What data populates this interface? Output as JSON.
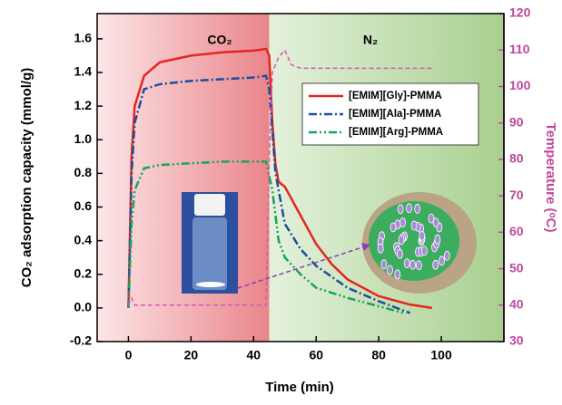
{
  "chart_data": {
    "type": "line",
    "xlabel": "Time (min)",
    "ylabel": "CO₂ adsorption capacity (mmol/g)",
    "y2label": "Temperature (ᵒC)",
    "xlim": [
      -10,
      120
    ],
    "xticks": [
      0,
      20,
      40,
      60,
      80,
      100
    ],
    "ylim": [
      -0.2,
      1.75
    ],
    "yticks": [
      -0.2,
      {
        "value": 0,
        "label": "0.0"
      },
      0.2,
      0.4,
      0.6,
      0.8,
      {
        "value": 1,
        "label": "1.0"
      },
      1.2,
      1.4,
      1.6
    ],
    "y2lim": [
      30,
      120
    ],
    "y2ticks": [
      30,
      40,
      50,
      60,
      70,
      80,
      90,
      100,
      110,
      120
    ],
    "y2color": "#c0469c",
    "regions": [
      {
        "label": "CO₂",
        "xlim": [
          -10,
          45
        ],
        "colors": [
          "#fde6e7",
          "#e9858b"
        ]
      },
      {
        "label": "N₂",
        "xlim": [
          45,
          120
        ],
        "colors": [
          "#e4f1dc",
          "#a8d08f"
        ]
      }
    ],
    "series": [
      {
        "name": "[EMIM][Gly]-PMMA",
        "color": "#e52521",
        "style": "solid",
        "x": [
          0,
          1,
          2,
          5,
          10,
          20,
          30,
          40,
          44,
          45,
          46,
          47,
          48,
          50,
          55,
          60,
          65,
          70,
          80,
          90,
          97
        ],
        "values": [
          0,
          0.9,
          1.2,
          1.38,
          1.46,
          1.5,
          1.52,
          1.53,
          1.54,
          1.5,
          1.1,
          0.85,
          0.75,
          0.72,
          0.55,
          0.38,
          0.26,
          0.17,
          0.07,
          0.02,
          0
        ]
      },
      {
        "name": "[EMIM][Ala]-PMMA",
        "color": "#1f4e9c",
        "style": "dashdot",
        "x": [
          0,
          1,
          2,
          5,
          10,
          20,
          30,
          40,
          44,
          45,
          47,
          50,
          55,
          60,
          70,
          80,
          90
        ],
        "values": [
          0,
          0.8,
          1.1,
          1.3,
          1.33,
          1.35,
          1.36,
          1.37,
          1.38,
          1.3,
          0.8,
          0.5,
          0.35,
          0.25,
          0.12,
          0.04,
          -0.03
        ]
      },
      {
        "name": "[EMIM][Arg]-PMMA",
        "color": "#1aa35a",
        "style": "dashdotdot",
        "x": [
          0,
          1,
          2,
          5,
          10,
          20,
          30,
          44,
          46,
          48,
          50,
          55,
          60,
          70,
          80,
          88
        ],
        "values": [
          0,
          0.5,
          0.7,
          0.83,
          0.85,
          0.86,
          0.87,
          0.87,
          0.7,
          0.4,
          0.3,
          0.2,
          0.12,
          0.06,
          0.01,
          -0.03
        ]
      },
      {
        "color": "#d45bb0",
        "style": "dashed",
        "axis": "y2",
        "x": [
          0,
          1,
          2,
          5,
          44,
          45,
          46,
          48,
          50,
          52,
          55,
          70,
          97
        ],
        "values": [
          40,
          42,
          40,
          40,
          40,
          80,
          104,
          108,
          110,
          106,
          105,
          105,
          105
        ]
      }
    ]
  }
}
